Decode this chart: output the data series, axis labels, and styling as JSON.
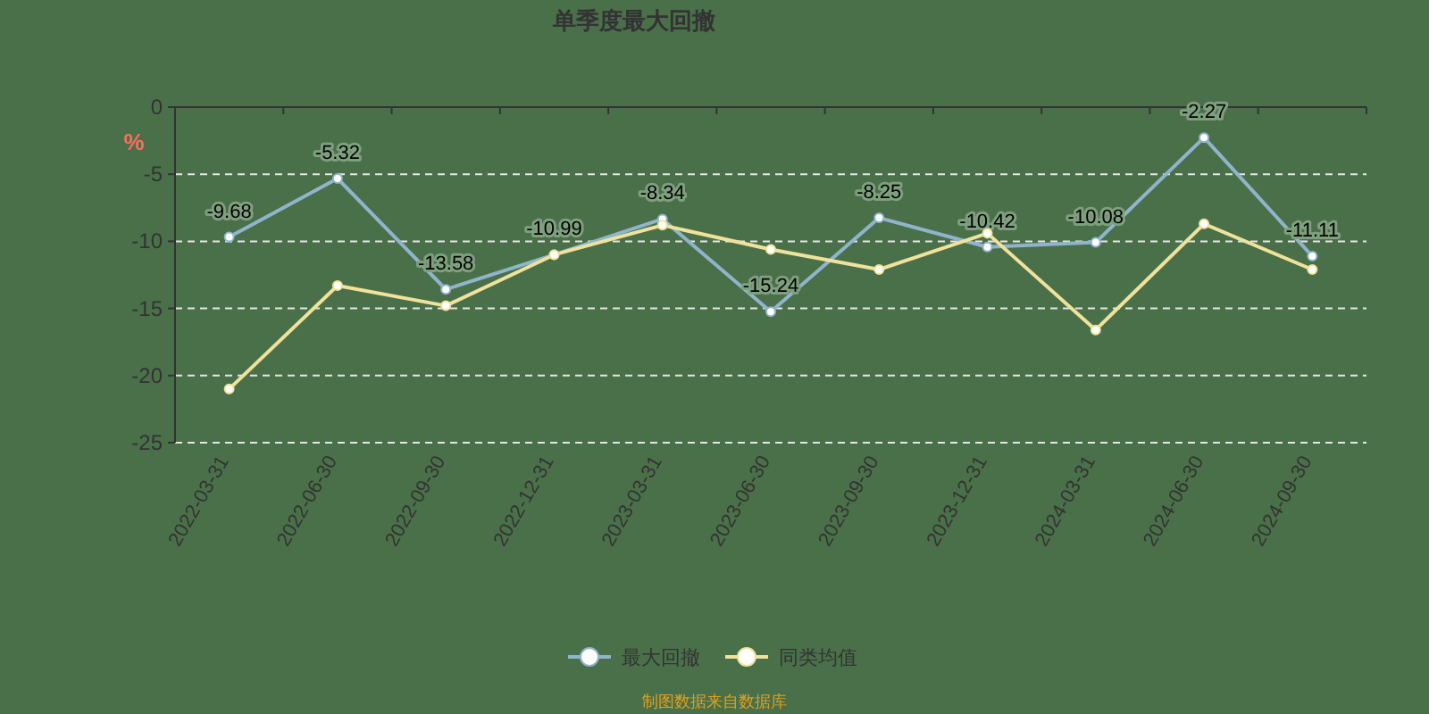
{
  "chart_data": {
    "type": "line",
    "title": "单季度最大回撤",
    "ylabel": "%",
    "categories": [
      "2022-03-31",
      "2022-06-30",
      "2022-09-30",
      "2022-12-31",
      "2023-03-31",
      "2023-06-30",
      "2023-09-30",
      "2023-12-31",
      "2024-03-31",
      "2024-06-30",
      "2024-09-30"
    ],
    "series": [
      {
        "name": "最大回撤",
        "color": "#8fb4cc",
        "values": [
          -9.68,
          -5.32,
          -13.58,
          -10.99,
          -8.34,
          -15.24,
          -8.25,
          -10.42,
          -10.08,
          -2.27,
          -11.11
        ],
        "value_labels": [
          "-9.68",
          "-5.32",
          "-13.58",
          "-10.99",
          "-8.34",
          "-15.24",
          "-8.25",
          "-10.42",
          "-10.08",
          "-2.27",
          "-11.11"
        ]
      },
      {
        "name": "同类均值",
        "color": "#f0e29a",
        "values": [
          -21,
          -13.3,
          -14.8,
          -11,
          -8.8,
          -10.6,
          -12.1,
          -9.4,
          -16.6,
          -8.7,
          -12.1
        ]
      }
    ],
    "ylim": [
      -25,
      0
    ],
    "yticks": [
      -25,
      -20,
      -15,
      -10,
      -5,
      0
    ],
    "grid": "y",
    "legend": "bottom",
    "marker": "circle",
    "line_style": "solid",
    "annotations": [
      "制图数据来自数据库"
    ]
  }
}
